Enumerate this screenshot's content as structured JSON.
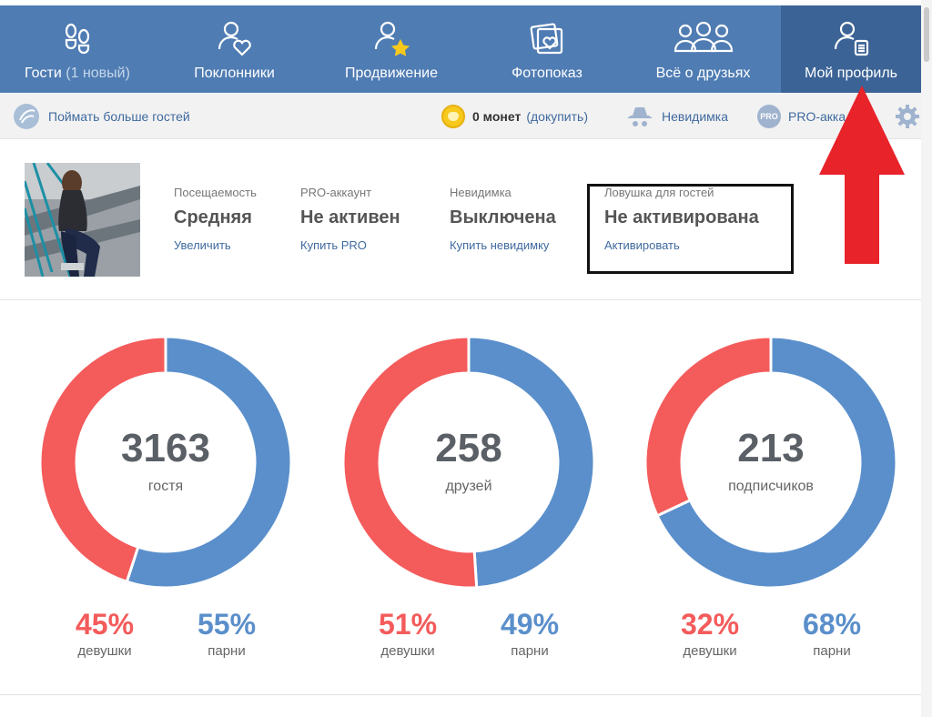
{
  "nav": {
    "tabs": [
      {
        "label": "Гости",
        "sub": "(1 новый)",
        "icon": "footprints-icon"
      },
      {
        "label": "Поклонники",
        "icon": "person-heart-icon"
      },
      {
        "label": "Продвижение",
        "icon": "person-star-icon"
      },
      {
        "label": "Фотопоказ",
        "icon": "photos-heart-icon"
      },
      {
        "label": "Всё о друзьях",
        "icon": "people-group-icon"
      },
      {
        "label": "Мой профиль",
        "icon": "person-card-icon"
      }
    ],
    "active_tab": "Мой профиль"
  },
  "toolbar": {
    "catch_guests": "Поймать больше гостей",
    "coins_amount": "0 монет",
    "coins_link": "(докупить)",
    "invisible": "Невидимка",
    "pro": "PRO-акка",
    "pro_badge": "PRO"
  },
  "profile": {
    "stats": [
      {
        "label": "Посещаемость",
        "value": "Средняя",
        "link": "Увеличить"
      },
      {
        "label": "PRO-аккаунт",
        "value": "Не активен",
        "link": "Купить PRO"
      },
      {
        "label": "Невидимка",
        "value": "Выключена",
        "link": "Купить невидимку"
      },
      {
        "label": "Ловушка для гостей",
        "value": "Не активирована",
        "link": "Активировать"
      }
    ]
  },
  "colors": {
    "girls": "#f45b5b",
    "boys": "#5a8fcb",
    "nav": "#4f7cb3",
    "nav_active": "#3b6396",
    "arrow": "#e8232a"
  },
  "chart_data": [
    {
      "type": "pie",
      "center_value": "3163",
      "center_label": "гостя",
      "categories": [
        "девушки",
        "парни"
      ],
      "values": [
        45,
        55
      ],
      "labels": [
        "45%",
        "55%"
      ]
    },
    {
      "type": "pie",
      "center_value": "258",
      "center_label": "друзей",
      "categories": [
        "девушки",
        "парни"
      ],
      "values": [
        51,
        49
      ],
      "labels": [
        "51%",
        "49%"
      ]
    },
    {
      "type": "pie",
      "center_value": "213",
      "center_label": "подписчиков",
      "categories": [
        "девушки",
        "парни"
      ],
      "values": [
        32,
        68
      ],
      "labels": [
        "32%",
        "68%"
      ]
    }
  ]
}
